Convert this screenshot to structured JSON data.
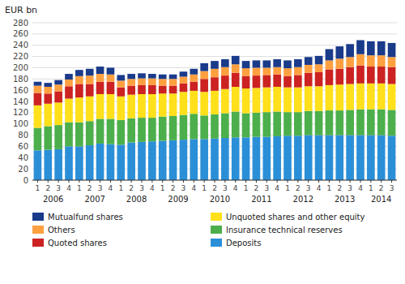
{
  "chart_data": {
    "type": "bar",
    "stacked": true,
    "ylabel": "EUR bn",
    "ylim": [
      0,
      280
    ],
    "yticks": [
      0,
      20,
      40,
      60,
      80,
      100,
      120,
      140,
      160,
      180,
      200,
      220,
      240,
      260,
      280
    ],
    "grid": true,
    "legend": "bottom",
    "categories": [
      "1",
      "2",
      "3",
      "4",
      "1",
      "2",
      "3",
      "4",
      "1",
      "2",
      "3",
      "4",
      "1",
      "2",
      "3",
      "4",
      "1",
      "2",
      "3",
      "4",
      "1",
      "2",
      "3",
      "4",
      "1",
      "2",
      "3",
      "4",
      "1",
      "2",
      "3",
      "4",
      "1",
      "2",
      "3"
    ],
    "annotations": [
      "2006",
      "2007",
      "2008",
      "2009",
      "2010",
      "2011",
      "2012",
      "2013",
      "2014"
    ],
    "series": [
      {
        "name": "Deposits",
        "color": "#2B8FD8",
        "values": [
          53,
          54,
          55,
          60,
          60,
          62,
          65,
          64,
          63,
          67,
          68,
          69,
          70,
          71,
          72,
          73,
          73,
          74,
          75,
          76,
          76,
          77,
          77,
          78,
          79,
          79,
          80,
          80,
          80,
          80,
          80,
          80,
          80,
          80,
          79
        ]
      },
      {
        "name": "Insurance technical reserves",
        "color": "#4CAF4C",
        "values": [
          40,
          42,
          43,
          43,
          43,
          43,
          44,
          45,
          44,
          43,
          43,
          42,
          43,
          43,
          44,
          45,
          42,
          43,
          44,
          46,
          43,
          43,
          44,
          44,
          42,
          42,
          43,
          43,
          44,
          44,
          45,
          46,
          46,
          46,
          46
        ]
      },
      {
        "name": "Unquoted shares and other equity",
        "color": "#FFE01B",
        "values": [
          40,
          40,
          40,
          42,
          44,
          44,
          44,
          44,
          42,
          42,
          42,
          42,
          41,
          40,
          41,
          41,
          42,
          42,
          43,
          44,
          44,
          44,
          44,
          44,
          44,
          44,
          44,
          44,
          45,
          46,
          46,
          46,
          46,
          46,
          46
        ]
      },
      {
        "name": "Quoted shares",
        "color": "#CC2222",
        "values": [
          22,
          18,
          20,
          22,
          24,
          22,
          22,
          22,
          16,
          16,
          16,
          16,
          14,
          14,
          15,
          16,
          23,
          24,
          24,
          25,
          22,
          22,
          22,
          22,
          20,
          22,
          24,
          25,
          28,
          28,
          30,
          32,
          30,
          30,
          30
        ]
      },
      {
        "name": "Others",
        "color": "#FFA040",
        "values": [
          13,
          12,
          12,
          12,
          14,
          15,
          14,
          13,
          12,
          12,
          12,
          12,
          12,
          12,
          12,
          13,
          14,
          15,
          15,
          15,
          14,
          14,
          13,
          13,
          14,
          14,
          14,
          14,
          16,
          18,
          18,
          20,
          20,
          20,
          18
        ]
      },
      {
        "name": "Mutualfund shares",
        "color": "#1A3A8A",
        "values": [
          7,
          7,
          8,
          10,
          11,
          12,
          13,
          12,
          10,
          9,
          9,
          8,
          8,
          8,
          9,
          10,
          14,
          14,
          14,
          15,
          13,
          13,
          13,
          14,
          14,
          14,
          14,
          15,
          20,
          22,
          23,
          25,
          25,
          25,
          25
        ]
      }
    ]
  }
}
